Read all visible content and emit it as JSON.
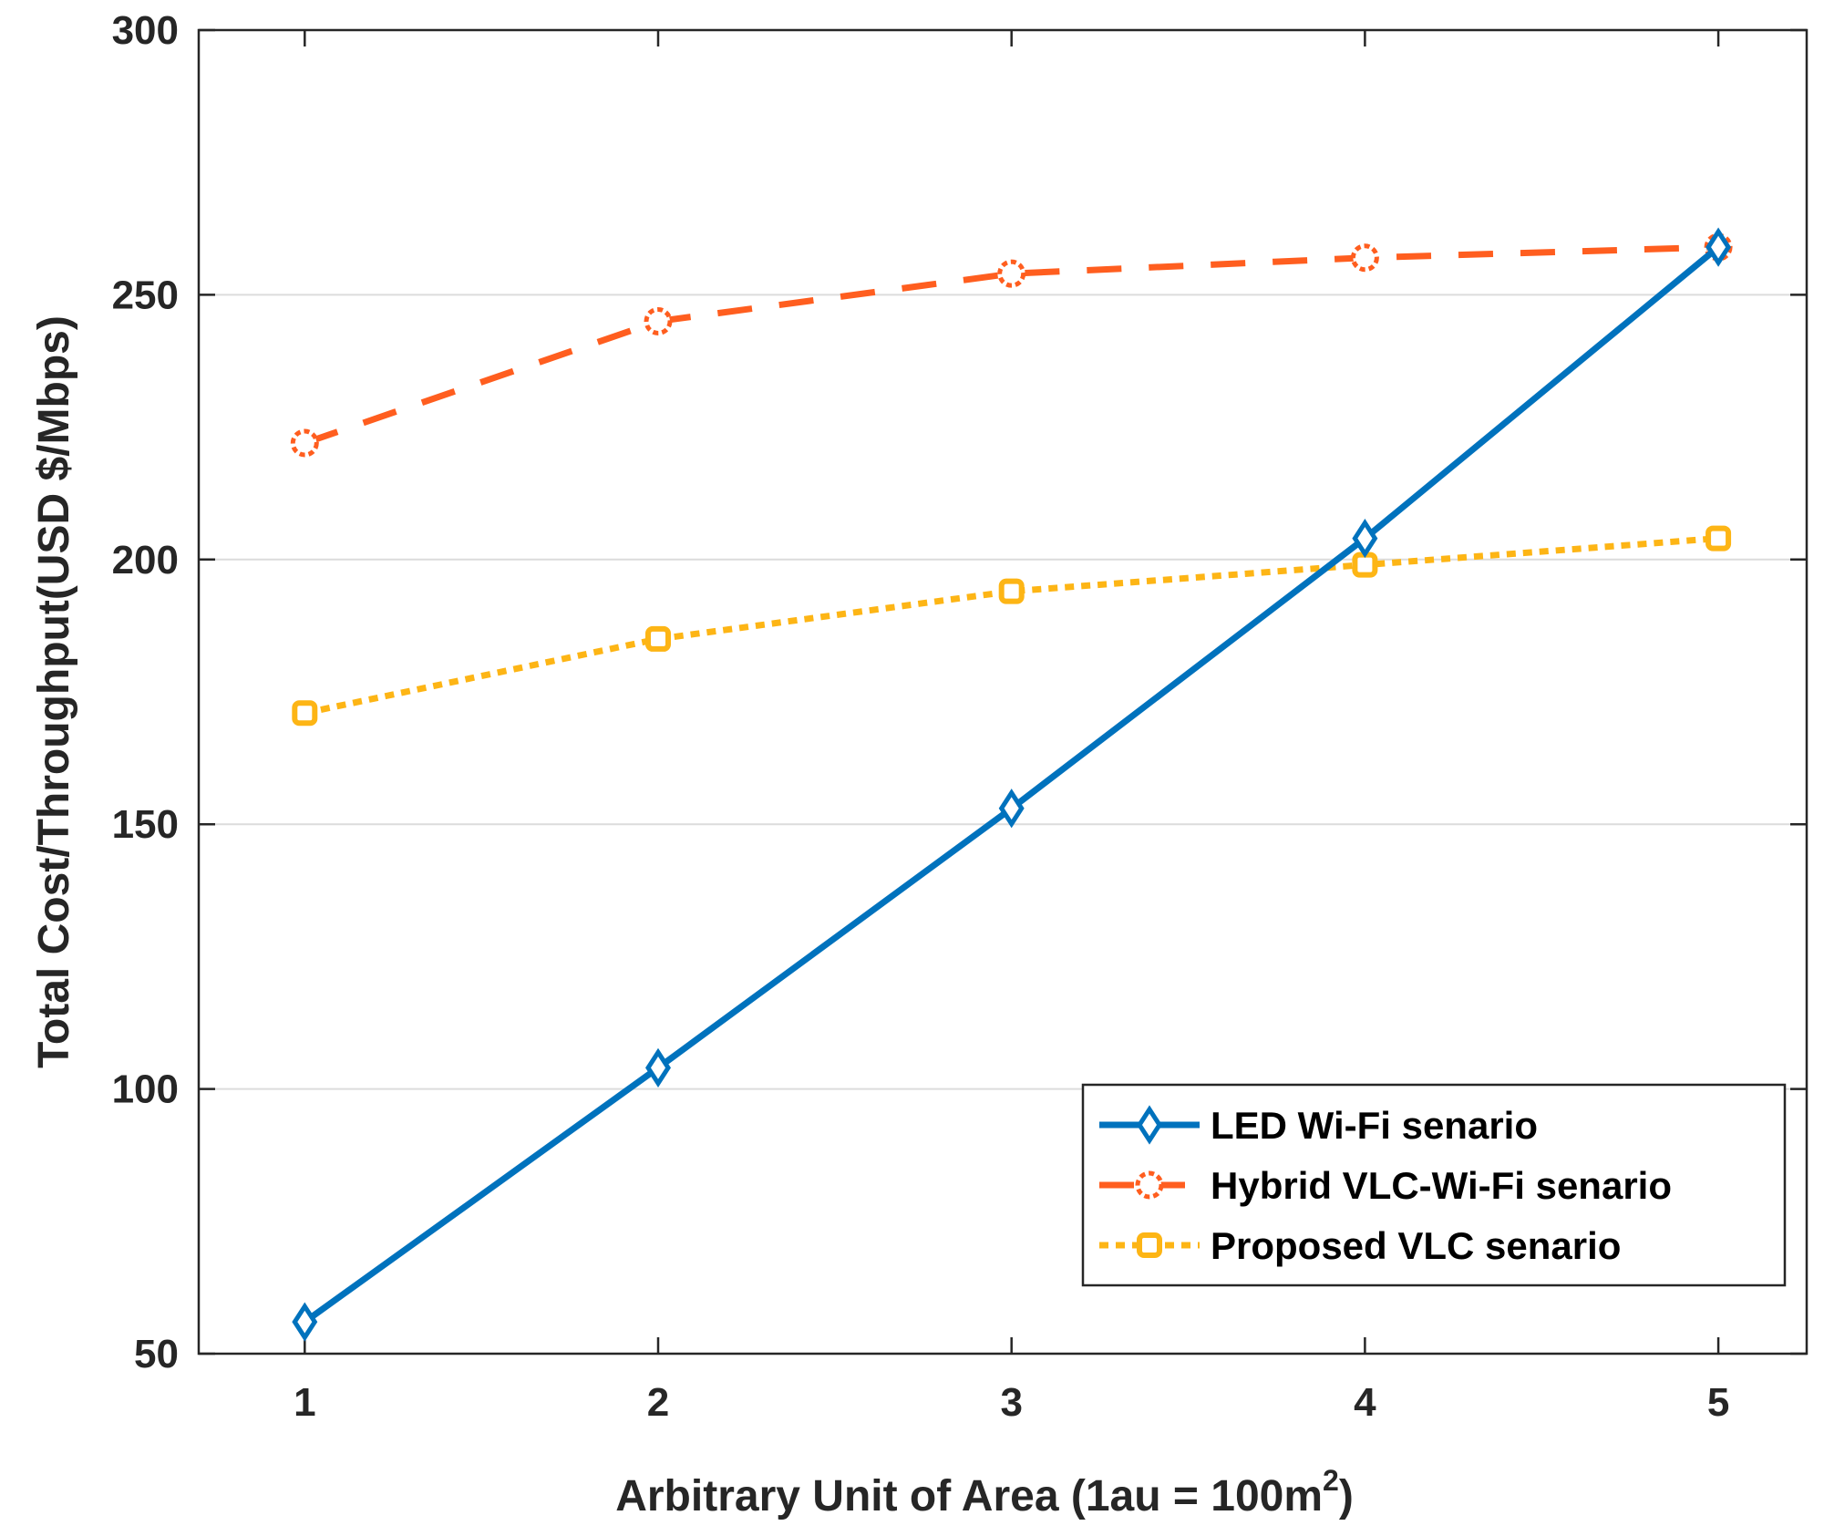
{
  "chart_data": {
    "type": "line",
    "xlabel": {
      "main": "Arbitrary Unit of Area (1au = 100m",
      "sup": "2",
      "tail": ")"
    },
    "ylabel": "Total Cost/Throughput(USD $/Mbps)",
    "xlim": [
      0.7,
      5.25
    ],
    "ylim": [
      50,
      300
    ],
    "xticks": [
      1,
      2,
      3,
      4,
      5
    ],
    "yticks": [
      50,
      100,
      150,
      200,
      250,
      300
    ],
    "grid": "horizontal",
    "legend_position": "bottom-right",
    "x": [
      1,
      2,
      3,
      4,
      5
    ],
    "series": [
      {
        "name": "LED Wi-Fi senario",
        "values": [
          56,
          104,
          153,
          204,
          259
        ],
        "color": "#0072BD",
        "line_style": "solid",
        "marker": "diamond"
      },
      {
        "name": "Hybrid VLC-Wi-Fi senario",
        "values": [
          222,
          245,
          254,
          257,
          259
        ],
        "color": "#FF5E1F",
        "line_style": "dashed",
        "marker": "circle"
      },
      {
        "name": "Proposed VLC senario",
        "values": [
          171,
          185,
          194,
          199,
          204
        ],
        "color": "#FDB515",
        "line_style": "dotted",
        "marker": "square"
      }
    ]
  }
}
